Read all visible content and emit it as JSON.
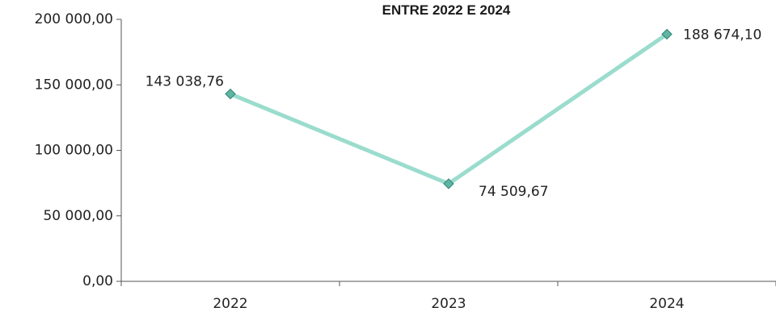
{
  "chart_data": {
    "type": "line",
    "title": "ENTRE 2022 E 2024",
    "categories": [
      "2022",
      "2023",
      "2024"
    ],
    "series": [
      {
        "values": [
          143038.76,
          74509.67,
          188674.1
        ]
      }
    ],
    "data_labels": [
      "143 038,76",
      "74 509,67",
      "188 674,10"
    ],
    "y_ticks": [
      {
        "value": 0,
        "label": "0,00"
      },
      {
        "value": 50000,
        "label": "50 000,00"
      },
      {
        "value": 100000,
        "label": "100 000,00"
      },
      {
        "value": 150000,
        "label": "150 000,00"
      },
      {
        "value": 200000,
        "label": "200 000,00"
      }
    ],
    "ylim": [
      0,
      200000
    ],
    "xlabel": "",
    "ylabel": "",
    "grid": false,
    "legend": "none",
    "colors": {
      "line": "#9adccd",
      "marker": "#5fb5a3",
      "marker_edge": "#2f7f72"
    }
  }
}
